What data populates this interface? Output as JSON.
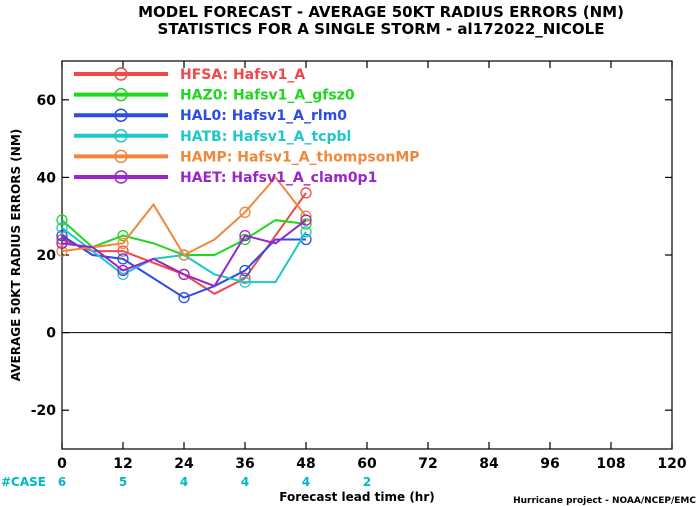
{
  "chart_data": {
    "type": "line",
    "title_lines": [
      "MODEL FORECAST - AVERAGE 50KT RADIUS ERRORS (NM)",
      "STATISTICS FOR A SINGLE STORM - al172022_NICOLE"
    ],
    "xlabel": "Forecast lead time (hr)",
    "ylabel": "AVERAGE 50KT RADIUS ERRORS (NM)",
    "xlim": [
      0,
      120
    ],
    "ylim": [
      -30,
      70
    ],
    "x_ticks": [
      0,
      12,
      24,
      36,
      48,
      60,
      72,
      84,
      96,
      108,
      120
    ],
    "y_ticks": [
      -20,
      0,
      20,
      40,
      60
    ],
    "case_label": "#CASE",
    "cases": [
      {
        "x": 0,
        "n": "6"
      },
      {
        "x": 12,
        "n": "5"
      },
      {
        "x": 24,
        "n": "4"
      },
      {
        "x": 36,
        "n": "4"
      },
      {
        "x": 48,
        "n": "4"
      },
      {
        "x": 60,
        "n": "2"
      }
    ],
    "credit": "Hurricane project - NOAA/NCEP/EMC",
    "legend_placement": "top-left",
    "series": [
      {
        "name": "HFSA",
        "desc": "Hafsv1_A",
        "color": "#f04848",
        "x": [
          0,
          6,
          12,
          18,
          24,
          30,
          36,
          42,
          48
        ],
        "y": [
          24,
          21,
          21,
          18,
          15,
          10,
          14,
          25,
          36
        ]
      },
      {
        "name": "HAZ0",
        "desc": "Hafsv1_A_gfsz0",
        "color": "#1ed81e",
        "x": [
          0,
          6,
          12,
          18,
          24,
          30,
          36,
          42,
          48
        ],
        "y": [
          29,
          22,
          25,
          23,
          20,
          20,
          24,
          29,
          28
        ]
      },
      {
        "name": "HAL0",
        "desc": "Hafsv1_A_rlm0",
        "color": "#2a4ce8",
        "x": [
          0,
          6,
          12,
          18,
          24,
          30,
          36,
          42,
          48
        ],
        "y": [
          25,
          20,
          19,
          14,
          9,
          12,
          16,
          24,
          24
        ]
      },
      {
        "name": "HATB",
        "desc": "Hafsv1_A_tcpbl",
        "color": "#1ec8c8",
        "x": [
          0,
          6,
          12,
          18,
          24,
          30,
          36,
          42,
          48
        ],
        "y": [
          27,
          21,
          15,
          19,
          20,
          15,
          13,
          13,
          26
        ]
      },
      {
        "name": "HAMP",
        "desc": "Hafsv1_A_thompsonMP",
        "color": "#f0873c",
        "x": [
          0,
          6,
          12,
          18,
          24,
          30,
          36,
          42,
          48
        ],
        "y": [
          21,
          22,
          23,
          33,
          20,
          24,
          31,
          40,
          30
        ]
      },
      {
        "name": "HAET",
        "desc": "Hafsv1_A_clam0p1",
        "color": "#9c24c8",
        "x": [
          0,
          6,
          12,
          18,
          24,
          30,
          36,
          42,
          48
        ],
        "y": [
          23,
          22,
          16,
          19,
          15,
          12,
          25,
          23,
          29
        ]
      }
    ]
  }
}
